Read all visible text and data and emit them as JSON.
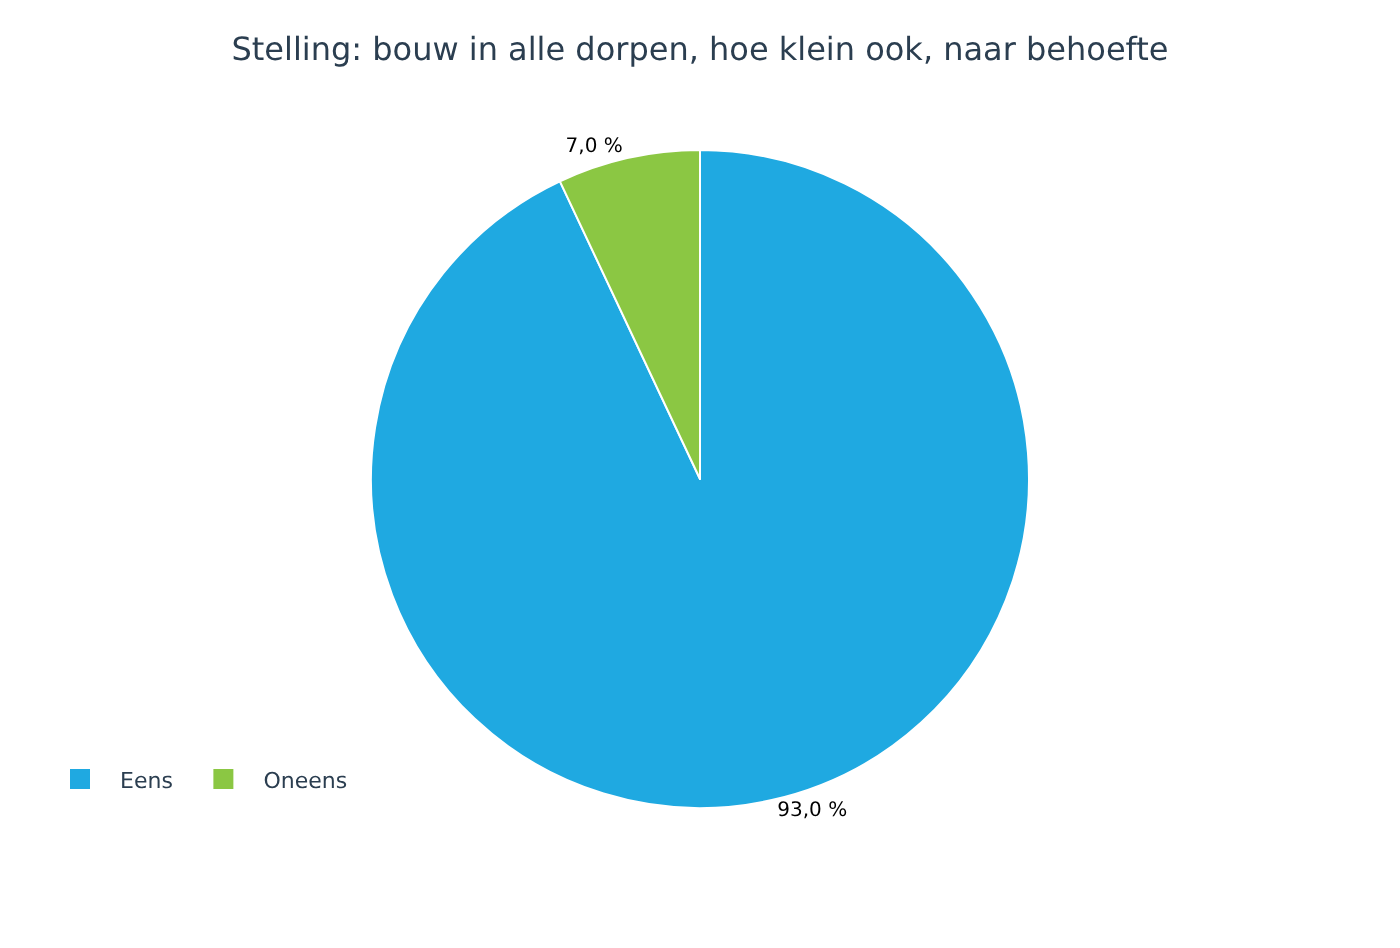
{
  "chart_data": {
    "type": "pie",
    "title": "Stelling: bouw in alle dorpen, hoe klein ook, naar behoefte",
    "categories": [
      "Eens",
      "Oneens"
    ],
    "values": [
      93.0,
      7.0
    ],
    "value_labels": [
      "93,0 %",
      "7,0 %"
    ],
    "colors": [
      "#1fa9e1",
      "#8bc743"
    ],
    "legend": "bottom left"
  }
}
